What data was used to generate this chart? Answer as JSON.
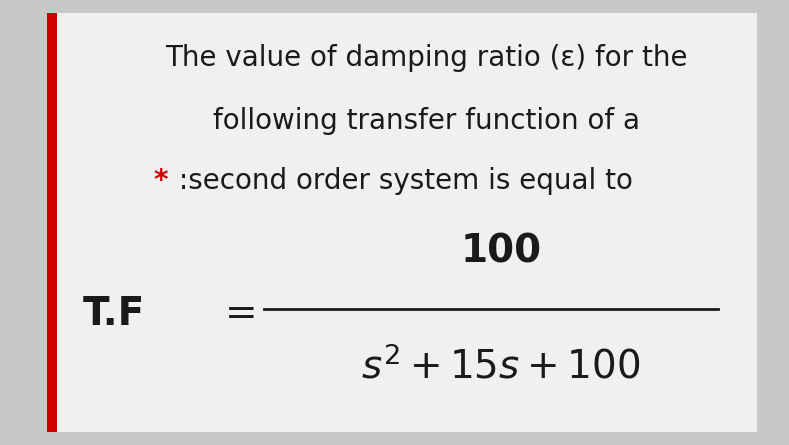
{
  "bg_color": "#c8c8c8",
  "card_color": "#f0f0f0",
  "text_color": "#1a1a1a",
  "star_color": "#cc0000",
  "border_color": "#cc0000",
  "line1": "The value of damping ratio (ε) for the",
  "line2": "following transfer function of a",
  "line3_star": "*",
  "line3_text": " :second order system is equal to",
  "tf_label": "T.F",
  "tf_equals": "=",
  "numerator": "100",
  "text_fontsize": 20,
  "tf_fontsize": 28,
  "num_fontsize": 28,
  "denom_fontsize": 28,
  "fig_width": 7.89,
  "fig_height": 4.45
}
